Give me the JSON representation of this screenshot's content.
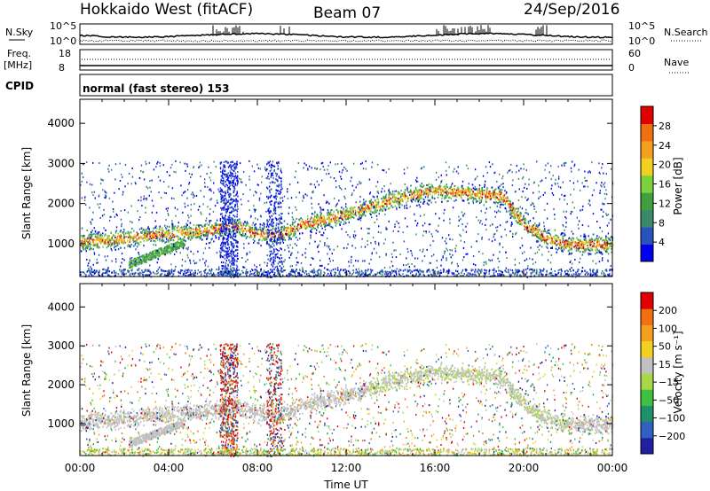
{
  "header": {
    "title": "Hokkaido West (fitACF)",
    "beam": "Beam 07",
    "date": "24/Sep/2016"
  },
  "summary_panels": {
    "nsky_label": "N.Sky",
    "nsearch_label": "N.Search",
    "nsky_ticks": [
      "10^5",
      "10^0"
    ],
    "nsearch_ticks": [
      "10^5",
      "10^0"
    ],
    "freq_label": "Freq.",
    "freq_unit": "[MHz]",
    "freq_ticks": [
      "18",
      "8"
    ],
    "nave_label": "Nave",
    "nave_ticks": [
      "60",
      "0"
    ],
    "cpid_label": "CPID",
    "cpid_value": "normal (fast stereo) 153"
  },
  "chart_data": [
    {
      "type": "heatmap",
      "name": "power",
      "ylabel": "Slant Range [km]",
      "xlabel": "",
      "y_ticks": [
        "4000",
        "3000",
        "2000",
        "1000"
      ],
      "y_tick_values": [
        4000,
        3000,
        2000,
        1000
      ],
      "ylim": [
        180,
        4600
      ],
      "xlim_hours": [
        0,
        24
      ],
      "colorbar": {
        "label": "Power [dB]",
        "ticks": [
          "28",
          "24",
          "20",
          "16",
          "12",
          "8",
          "4"
        ],
        "colors": [
          "#0000ee",
          "#2a52be",
          "#3a8a6a",
          "#3fa040",
          "#7dd13a",
          "#f0d020",
          "#f5a020",
          "#f07010",
          "#e00000"
        ]
      },
      "echo_band_center_km": [
        [
          0,
          1050
        ],
        [
          3,
          1200
        ],
        [
          5,
          1300
        ],
        [
          7,
          1450
        ],
        [
          8,
          1250
        ],
        [
          9,
          1250
        ],
        [
          10,
          1500
        ],
        [
          12,
          1750
        ],
        [
          14,
          2100
        ],
        [
          16,
          2350
        ],
        [
          18,
          2250
        ],
        [
          19,
          2200
        ],
        [
          20,
          1500
        ],
        [
          21,
          1150
        ],
        [
          22,
          1000
        ],
        [
          24,
          1000
        ]
      ]
    },
    {
      "type": "heatmap",
      "name": "velocity",
      "ylabel": "Slant Range [km]",
      "xlabel": "Time UT",
      "y_ticks": [
        "4000",
        "3000",
        "2000",
        "1000"
      ],
      "y_tick_values": [
        4000,
        3000,
        2000,
        1000
      ],
      "ylim": [
        180,
        4600
      ],
      "x_ticks": [
        "00:00",
        "04:00",
        "08:00",
        "12:00",
        "16:00",
        "20:00",
        "00:00"
      ],
      "x_tick_hours": [
        0,
        4,
        8,
        12,
        16,
        20,
        24
      ],
      "colorbar": {
        "label": "Velocity [m s⁻¹]",
        "ticks": [
          "200",
          "100",
          "50",
          "15",
          "−15",
          "−50",
          "−100",
          "−200"
        ],
        "colors": [
          "#2020a0",
          "#3060c0",
          "#20906a",
          "#40c040",
          "#a8d848",
          "#c0c0c0",
          "#f0d020",
          "#f5a020",
          "#f07010",
          "#e00000"
        ]
      }
    }
  ]
}
